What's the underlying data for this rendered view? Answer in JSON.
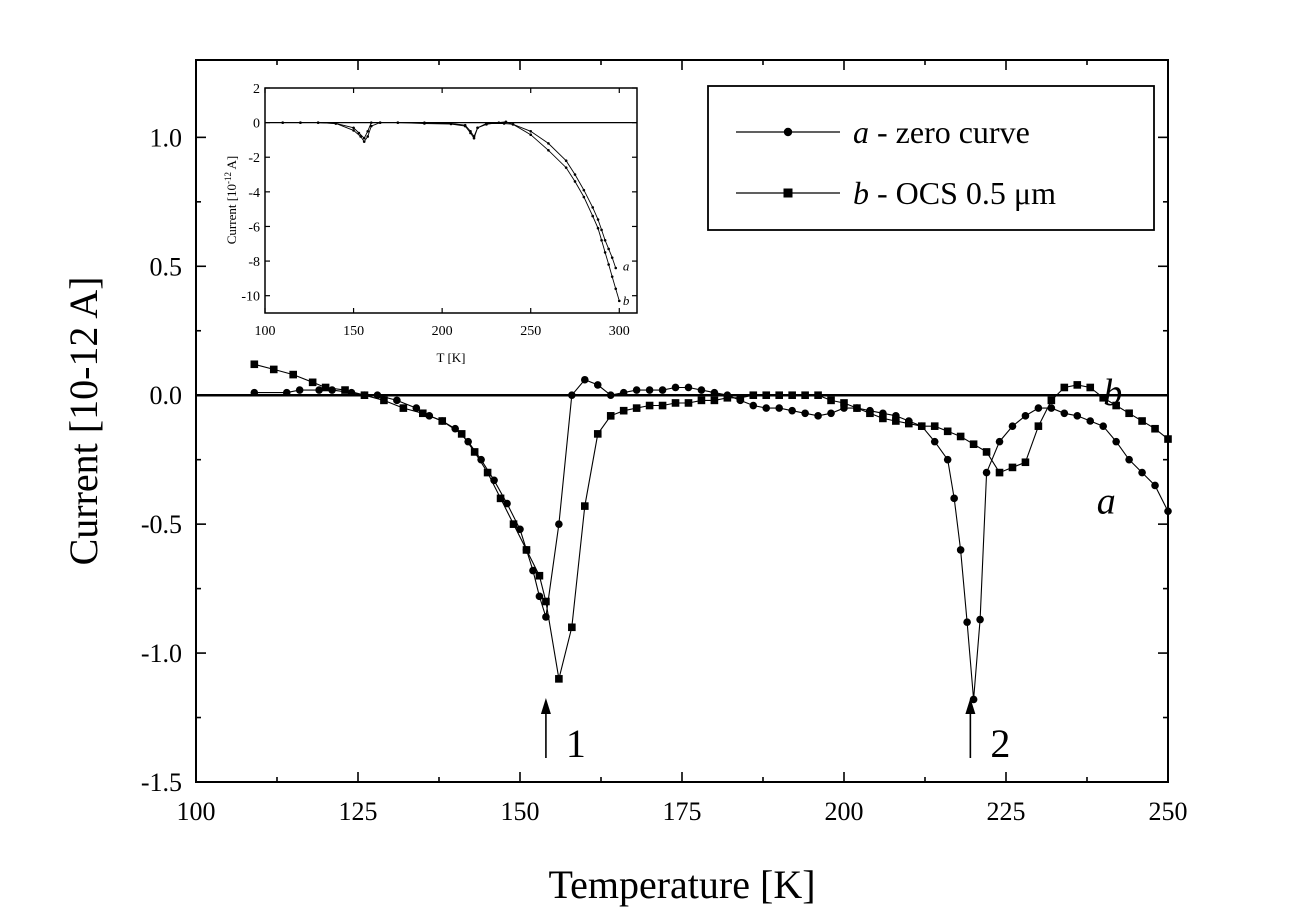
{
  "chart_data": [
    {
      "id": "main",
      "type": "line",
      "xlabel": "Temperature [K]",
      "ylabel": "Current [10-12 A]",
      "xlim": [
        100,
        250
      ],
      "ylim": [
        -1.5,
        1.3
      ],
      "xticks": [
        100,
        125,
        150,
        175,
        200,
        225,
        250
      ],
      "yticks": [
        -1.5,
        -1.0,
        -0.5,
        0.0,
        0.5,
        1.0
      ],
      "xtick_labels": [
        "100",
        "125",
        "150",
        "175",
        "200",
        "225",
        "250"
      ],
      "ytick_labels": [
        "-1.5",
        "-1.0",
        "-0.5",
        "0.0",
        "0.5",
        "1.0"
      ],
      "zero_line": true,
      "legend": {
        "placement": "top-right",
        "entries": [
          {
            "series": "a",
            "marker": "circle",
            "letter": "a",
            "text": " - zero curve"
          },
          {
            "series": "b",
            "marker": "square",
            "letter": "b",
            "text": " - OCS 0.5 μm"
          }
        ]
      },
      "series": [
        {
          "name": "a",
          "marker": "circle",
          "x": [
            109,
            114,
            116,
            119,
            121,
            124,
            126,
            128,
            131,
            134,
            136,
            138,
            140,
            142,
            144,
            146,
            148,
            150,
            151,
            152,
            153,
            154,
            156,
            158,
            160,
            162,
            164,
            166,
            168,
            170,
            172,
            174,
            176,
            178,
            180,
            182,
            184,
            186,
            188,
            190,
            192,
            194,
            196,
            198,
            200,
            202,
            204,
            206,
            208,
            210,
            212,
            214,
            216,
            217,
            218,
            219,
            220,
            221,
            222,
            224,
            226,
            228,
            230,
            232,
            234,
            236,
            238,
            240,
            242,
            244,
            246,
            248,
            250
          ],
          "y": [
            0.01,
            0.01,
            0.02,
            0.02,
            0.02,
            0.01,
            0.0,
            0.0,
            -0.02,
            -0.05,
            -0.08,
            -0.1,
            -0.13,
            -0.18,
            -0.25,
            -0.33,
            -0.42,
            -0.52,
            -0.6,
            -0.68,
            -0.78,
            -0.86,
            -0.5,
            0.0,
            0.06,
            0.04,
            0.0,
            0.01,
            0.02,
            0.02,
            0.02,
            0.03,
            0.03,
            0.02,
            0.01,
            0.0,
            -0.02,
            -0.04,
            -0.05,
            -0.05,
            -0.06,
            -0.07,
            -0.08,
            -0.07,
            -0.05,
            -0.05,
            -0.06,
            -0.07,
            -0.08,
            -0.1,
            -0.12,
            -0.18,
            -0.25,
            -0.4,
            -0.6,
            -0.88,
            -1.18,
            -0.87,
            -0.3,
            -0.18,
            -0.12,
            -0.08,
            -0.05,
            -0.05,
            -0.07,
            -0.08,
            -0.1,
            -0.12,
            -0.18,
            -0.25,
            -0.3,
            -0.35,
            -0.45
          ]
        },
        {
          "name": "b",
          "marker": "square",
          "x": [
            109,
            112,
            115,
            118,
            120,
            123,
            126,
            129,
            132,
            135,
            138,
            141,
            143,
            145,
            147,
            149,
            151,
            153,
            154,
            156,
            158,
            160,
            162,
            164,
            166,
            168,
            170,
            172,
            174,
            176,
            178,
            180,
            182,
            184,
            186,
            188,
            190,
            192,
            194,
            196,
            198,
            200,
            202,
            204,
            206,
            208,
            210,
            212,
            214,
            216,
            218,
            220,
            222,
            224,
            226,
            228,
            230,
            232,
            234,
            236,
            238,
            240,
            242,
            244,
            246,
            248,
            250
          ],
          "y": [
            0.12,
            0.1,
            0.08,
            0.05,
            0.03,
            0.02,
            0.0,
            -0.02,
            -0.05,
            -0.07,
            -0.1,
            -0.15,
            -0.22,
            -0.3,
            -0.4,
            -0.5,
            -0.6,
            -0.7,
            -0.8,
            -1.1,
            -0.9,
            -0.43,
            -0.15,
            -0.08,
            -0.06,
            -0.05,
            -0.04,
            -0.04,
            -0.03,
            -0.03,
            -0.02,
            -0.02,
            -0.01,
            -0.01,
            0.0,
            0.0,
            0.0,
            0.0,
            0.0,
            0.0,
            -0.02,
            -0.03,
            -0.05,
            -0.07,
            -0.09,
            -0.1,
            -0.11,
            -0.12,
            -0.12,
            -0.14,
            -0.16,
            -0.19,
            -0.22,
            -0.3,
            -0.28,
            -0.26,
            -0.12,
            -0.02,
            0.03,
            0.04,
            0.03,
            -0.01,
            -0.04,
            -0.07,
            -0.1,
            -0.13,
            -0.17
          ]
        }
      ],
      "annotations": [
        {
          "type": "arrow",
          "x": 154,
          "label": "1"
        },
        {
          "type": "arrow",
          "x": 219.5,
          "label": "2"
        },
        {
          "type": "series-label",
          "text": "b",
          "x": 240,
          "y": 0.0
        },
        {
          "type": "series-label",
          "text": "a",
          "x": 239,
          "y": -0.42
        }
      ]
    },
    {
      "id": "inset",
      "type": "line",
      "xlabel": "T [K]",
      "ylabel": "Current [10",
      "ylabel_sup": "-12",
      "ylabel_tail": " A]",
      "xlim": [
        100,
        310
      ],
      "ylim": [
        -11,
        2
      ],
      "xticks": [
        100,
        150,
        200,
        250,
        300
      ],
      "yticks": [
        -10,
        -8,
        -6,
        -4,
        -2,
        0,
        2
      ],
      "xtick_labels": [
        "100",
        "150",
        "200",
        "250",
        "300"
      ],
      "ytick_labels": [
        "-10",
        "-8",
        "-6",
        "-4",
        "-2",
        "0",
        "2"
      ],
      "zero_line": true,
      "series": [
        {
          "name": "a",
          "x": [
            110,
            120,
            130,
            140,
            150,
            153,
            156,
            158,
            160,
            165,
            175,
            190,
            205,
            213,
            216,
            218,
            220,
            225,
            235,
            240,
            250,
            260,
            270,
            275,
            280,
            285,
            288,
            290,
            292,
            294,
            296,
            298
          ],
          "y": [
            0.0,
            0.0,
            0.0,
            -0.05,
            -0.3,
            -0.6,
            -0.9,
            -0.5,
            0.0,
            0.0,
            0.0,
            -0.05,
            -0.08,
            -0.2,
            -0.6,
            -0.9,
            -0.3,
            -0.05,
            -0.05,
            -0.1,
            -0.5,
            -1.2,
            -2.2,
            -3.0,
            -3.9,
            -4.9,
            -5.6,
            -6.2,
            -6.8,
            -7.3,
            -7.8,
            -8.4
          ]
        },
        {
          "name": "b",
          "x": [
            110,
            120,
            130,
            140,
            150,
            154,
            156,
            158,
            160,
            165,
            175,
            190,
            205,
            213,
            216,
            218,
            220,
            225,
            232,
            236,
            240,
            250,
            260,
            270,
            275,
            280,
            285,
            288,
            290,
            292,
            294,
            296,
            298,
            300
          ],
          "y": [
            0.0,
            0.0,
            0.0,
            -0.05,
            -0.45,
            -0.8,
            -1.1,
            -0.8,
            -0.2,
            0.0,
            0.0,
            0.0,
            -0.05,
            -0.15,
            -0.5,
            -0.8,
            -0.3,
            -0.1,
            0.0,
            0.05,
            -0.1,
            -0.7,
            -1.6,
            -2.6,
            -3.4,
            -4.3,
            -5.4,
            -6.1,
            -6.8,
            -7.5,
            -8.2,
            -8.9,
            -9.6,
            -10.3
          ]
        }
      ],
      "annotations": [
        {
          "type": "series-label",
          "text": "a",
          "x": 302,
          "y": -8.3
        },
        {
          "type": "series-label",
          "text": "b",
          "x": 302,
          "y": -10.3
        }
      ]
    }
  ]
}
